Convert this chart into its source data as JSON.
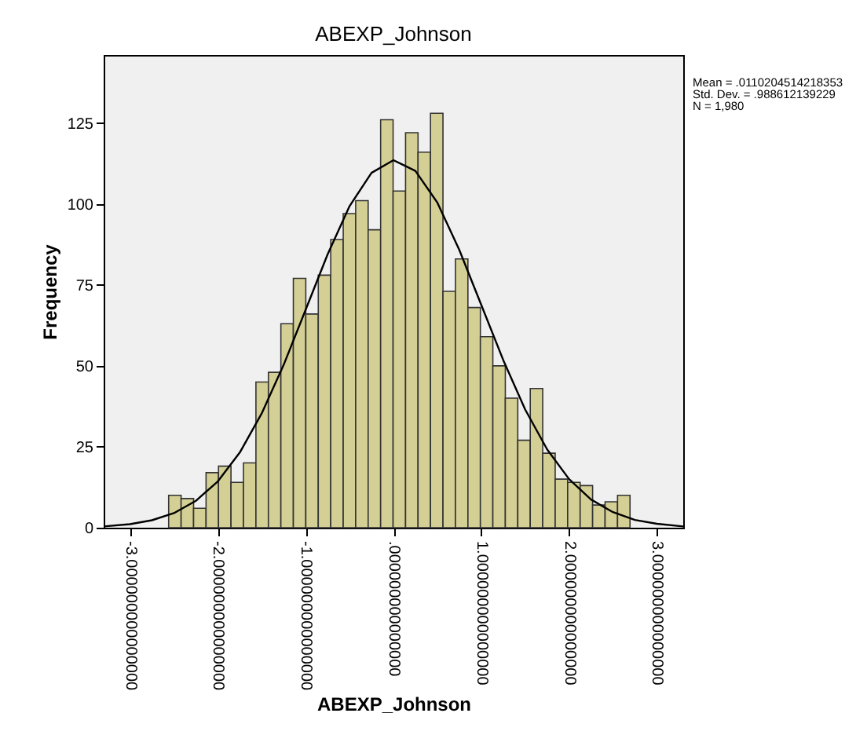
{
  "chart_data": {
    "type": "histogram",
    "title": "ABEXP_Johnson",
    "xlabel": "ABEXP_Johnson",
    "ylabel": "Frequency",
    "annotations": [
      "Mean = .0110204514218353",
      "Std. Dev. = .988612139229",
      "N = 1,980"
    ],
    "series": [
      {
        "color": "#d4cf94",
        "bins": [
          -2.56,
          -2.418,
          -2.276,
          -2.134,
          -1.992,
          -1.85,
          -1.708,
          -1.566,
          -1.424,
          -1.282,
          -1.14,
          -0.998,
          -0.856,
          -0.714,
          -0.572,
          -0.43,
          -0.288,
          -0.146,
          -0.004,
          0.138,
          0.28,
          0.422,
          0.564,
          0.706,
          0.848,
          0.99,
          1.132,
          1.274,
          1.416,
          1.558,
          1.7,
          1.842,
          1.984,
          2.126,
          2.268,
          2.41,
          2.552,
          2.694
        ],
        "values": [
          10,
          9,
          6,
          17,
          19,
          14,
          20,
          45,
          48,
          63,
          77,
          66,
          78,
          89,
          97,
          101,
          92,
          126,
          104,
          122,
          116,
          128,
          73,
          83,
          68,
          59,
          50,
          40,
          27,
          43,
          23,
          15,
          14,
          13,
          7,
          8,
          10
        ]
      },
      {
        "type": "line",
        "color": "#000000",
        "x": [
          -3.3,
          -3.0,
          -2.75,
          -2.5,
          -2.25,
          -2.0,
          -1.75,
          -1.5,
          -1.25,
          -1.0,
          -0.75,
          -0.5,
          -0.25,
          0,
          0.25,
          0.5,
          0.75,
          1.0,
          1.25,
          1.5,
          1.75,
          2.0,
          2.25,
          2.5,
          2.75,
          3.0,
          3.3
        ],
        "values": [
          0.4,
          1.1,
          2.3,
          4.5,
          8.3,
          14.3,
          23.2,
          35.3,
          50.3,
          67.3,
          84.4,
          99.3,
          109.6,
          113.5,
          110.2,
          100.4,
          85.8,
          68.8,
          51.8,
          36.5,
          24.2,
          15.0,
          8.7,
          4.8,
          2.4,
          1.2,
          0.4
        ]
      }
    ],
    "xlim": [
      -3.3,
      3.3
    ],
    "ylim": [
      0,
      146
    ],
    "xticks": [
      {
        "value": -3,
        "label": "-3.000000000000000"
      },
      {
        "value": -2,
        "label": "-2.000000000000000"
      },
      {
        "value": -1,
        "label": "-1.000000000000000"
      },
      {
        "value": 0,
        "label": ".000000000000000"
      },
      {
        "value": 1,
        "label": "1.000000000000000"
      },
      {
        "value": 2,
        "label": "2.000000000000000"
      },
      {
        "value": 3,
        "label": "3.000000000000000"
      }
    ],
    "yticks": [
      0,
      25,
      50,
      75,
      100,
      125
    ],
    "grid": false
  }
}
